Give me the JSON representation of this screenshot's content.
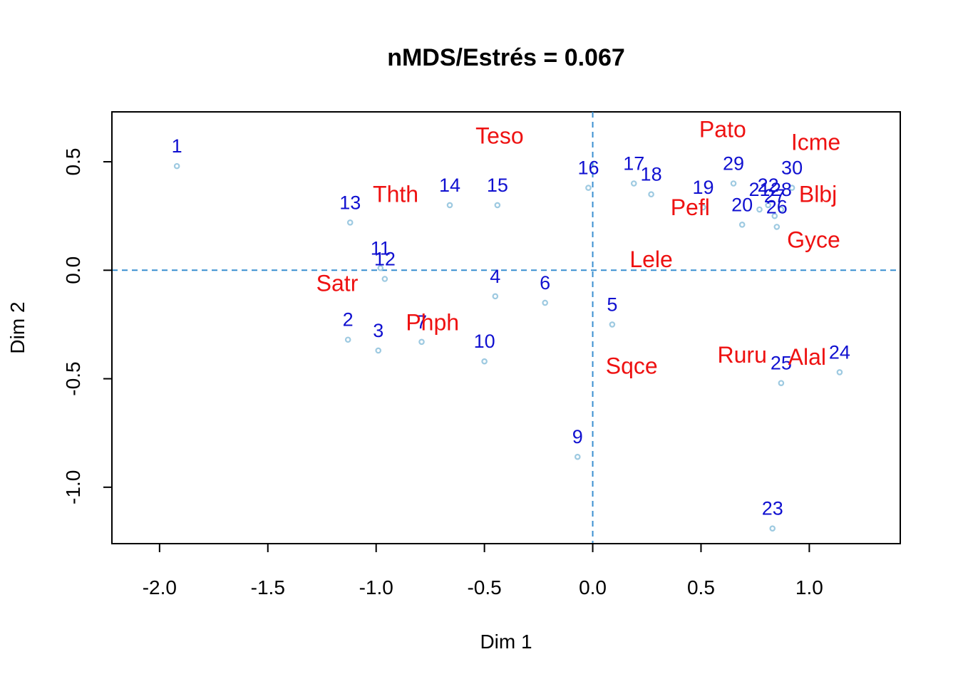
{
  "chart_data": {
    "type": "scatter",
    "title": "nMDS/Estrés = 0.067",
    "xlabel": "Dim 1",
    "ylabel": "Dim 2",
    "xlim": [
      -2.22,
      1.42
    ],
    "ylim": [
      -1.26,
      0.73
    ],
    "x_ticks": [
      -2.0,
      -1.5,
      -1.0,
      -0.5,
      0.0,
      0.5,
      1.0
    ],
    "x_tick_labels": [
      "-2.0",
      "-1.5",
      "-1.0",
      "-0.5",
      "0.0",
      "0.5",
      "1.0"
    ],
    "y_ticks": [
      -1.0,
      -0.5,
      0.0,
      0.5
    ],
    "y_tick_labels": [
      "-1.0",
      "-0.5",
      "0.0",
      "0.5"
    ],
    "reference_lines": {
      "x": 0,
      "y": 0,
      "style": "dashed"
    },
    "colors": {
      "site_point": "#9ecae1",
      "site_label": "#1010d0",
      "species_label": "#ee1111",
      "reference_line": "#3a8fd0"
    },
    "sites": [
      {
        "label": "1",
        "x": -1.92,
        "y": 0.48
      },
      {
        "label": "2",
        "x": -1.13,
        "y": -0.32
      },
      {
        "label": "3",
        "x": -0.99,
        "y": -0.37
      },
      {
        "label": "4",
        "x": -0.45,
        "y": -0.12
      },
      {
        "label": "5",
        "x": 0.09,
        "y": -0.25
      },
      {
        "label": "6",
        "x": -0.22,
        "y": -0.15
      },
      {
        "label": "7",
        "x": -0.79,
        "y": -0.33
      },
      {
        "label": "9",
        "x": -0.07,
        "y": -0.86
      },
      {
        "label": "10",
        "x": -0.5,
        "y": -0.42
      },
      {
        "label": "11",
        "x": -0.98,
        "y": 0.01
      },
      {
        "label": "12",
        "x": -0.96,
        "y": -0.04
      },
      {
        "label": "13",
        "x": -1.12,
        "y": 0.22
      },
      {
        "label": "14",
        "x": -0.66,
        "y": 0.3
      },
      {
        "label": "15",
        "x": -0.44,
        "y": 0.3
      },
      {
        "label": "16",
        "x": -0.02,
        "y": 0.38
      },
      {
        "label": "17",
        "x": 0.19,
        "y": 0.4
      },
      {
        "label": "18",
        "x": 0.27,
        "y": 0.35
      },
      {
        "label": "19",
        "x": 0.51,
        "y": 0.29
      },
      {
        "label": "20",
        "x": 0.69,
        "y": 0.21
      },
      {
        "label": "21",
        "x": 0.77,
        "y": 0.28
      },
      {
        "label": "22",
        "x": 0.81,
        "y": 0.3
      },
      {
        "label": "23",
        "x": 0.83,
        "y": -1.19
      },
      {
        "label": "24",
        "x": 1.14,
        "y": -0.47
      },
      {
        "label": "25",
        "x": 0.87,
        "y": -0.52
      },
      {
        "label": "26",
        "x": 0.85,
        "y": 0.2
      },
      {
        "label": "27",
        "x": 0.84,
        "y": 0.25
      },
      {
        "label": "28",
        "x": 0.87,
        "y": 0.28
      },
      {
        "label": "29",
        "x": 0.65,
        "y": 0.4
      },
      {
        "label": "30",
        "x": 0.92,
        "y": 0.38
      }
    ],
    "species": [
      {
        "label": "Teso",
        "x": -0.43,
        "y": 0.62
      },
      {
        "label": "Pato",
        "x": 0.6,
        "y": 0.65
      },
      {
        "label": "Icme",
        "x": 1.03,
        "y": 0.59
      },
      {
        "label": "Thth",
        "x": -0.91,
        "y": 0.35
      },
      {
        "label": "Blbj",
        "x": 1.04,
        "y": 0.35
      },
      {
        "label": "Pefl",
        "x": 0.45,
        "y": 0.29
      },
      {
        "label": "Gyce",
        "x": 1.02,
        "y": 0.14
      },
      {
        "label": "Lele",
        "x": 0.27,
        "y": 0.05
      },
      {
        "label": "Satr",
        "x": -1.18,
        "y": -0.06
      },
      {
        "label": "Phph",
        "x": -0.74,
        "y": -0.24
      },
      {
        "label": "Ruru",
        "x": 0.69,
        "y": -0.39
      },
      {
        "label": "Alal",
        "x": 0.99,
        "y": -0.4
      },
      {
        "label": "Sqce",
        "x": 0.18,
        "y": -0.44
      }
    ]
  }
}
